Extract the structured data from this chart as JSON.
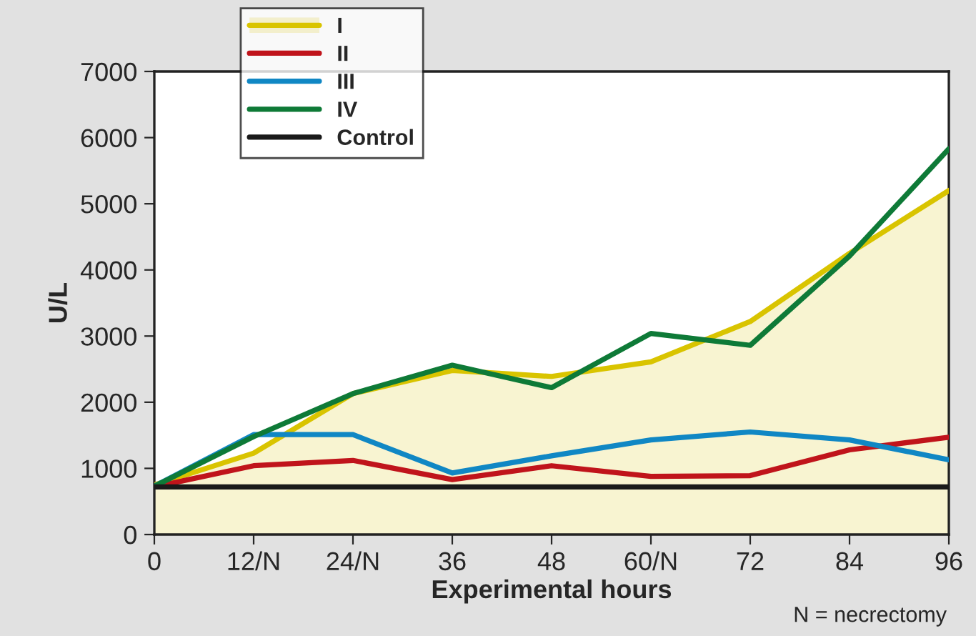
{
  "chart_data": {
    "type": "line",
    "xlabel": "Experimental hours",
    "ylabel": "U/L",
    "categories": [
      "0",
      "12/N",
      "24/N",
      "36",
      "48",
      "60/N",
      "72",
      "84",
      "96"
    ],
    "series": [
      {
        "name": "I",
        "type": "area",
        "color": "#d9c400",
        "values": [
          750,
          1230,
          2130,
          2480,
          2390,
          2610,
          3220,
          4250,
          5200
        ]
      },
      {
        "name": "II",
        "color": "#c0141b",
        "values": [
          720,
          1040,
          1120,
          830,
          1040,
          880,
          890,
          1280,
          1470
        ]
      },
      {
        "name": "III",
        "color": "#1087c4",
        "values": [
          730,
          1510,
          1510,
          930,
          1190,
          1430,
          1550,
          1430,
          1130
        ]
      },
      {
        "name": "IV",
        "color": "#0e7a37",
        "values": [
          730,
          1480,
          2130,
          2560,
          2220,
          3040,
          2860,
          4210,
          5830
        ]
      },
      {
        "name": "Control",
        "color": "#1a1a1a",
        "values": [
          720,
          720,
          720,
          720,
          720,
          720,
          720,
          720,
          720
        ]
      }
    ],
    "ylim": [
      0,
      7000
    ],
    "yticks": [
      0,
      1000,
      2000,
      3000,
      4000,
      5000,
      6000,
      7000
    ],
    "grid": false,
    "legend": "top left",
    "marker": "none",
    "line_style": "solid",
    "annotations": [
      "N = necrectomy"
    ]
  }
}
